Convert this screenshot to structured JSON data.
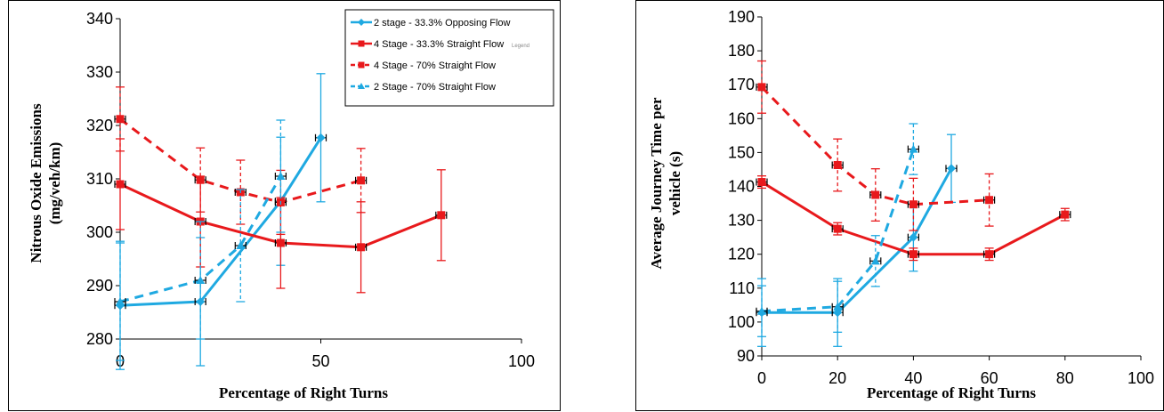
{
  "chart_data": [
    {
      "type": "line",
      "title": "",
      "xlabel": "Percentage of Right Turns",
      "ylabel": "Nitrous Oxide Emissions (mg/veh/km)",
      "ylabel_lines": [
        "Nitrous Oxide Emissions",
        "(mg/veh/km)"
      ],
      "xlim": [
        0,
        100
      ],
      "ylim": [
        280,
        340
      ],
      "xticks": [
        0,
        50,
        100
      ],
      "yticks": [
        280,
        290,
        300,
        310,
        320,
        330,
        340
      ],
      "grid": false,
      "legend_position": "top-right",
      "legend_tag": "Legend",
      "series": [
        {
          "name": "2 stage - 33.3% Opposing Flow",
          "color": "#1FA9E1",
          "dash": false,
          "marker": "diamond",
          "x": [
            0,
            20,
            40,
            50
          ],
          "y": [
            286.3,
            287.0,
            305.8,
            317.7
          ],
          "err": [
            12,
            12,
            12,
            12
          ]
        },
        {
          "name": "4 Stage - 33.3% Straight Flow",
          "color": "#E8191C",
          "dash": false,
          "marker": "square",
          "x": [
            0,
            20,
            40,
            60,
            80
          ],
          "y": [
            309.0,
            302.0,
            298.0,
            297.2,
            303.2
          ],
          "err": [
            8.5,
            8.5,
            8.5,
            8.5,
            8.5
          ]
        },
        {
          "name": "4 Stage - 70% Straight Flow",
          "color": "#E8191C",
          "dash": true,
          "marker": "square",
          "x": [
            0,
            20,
            30,
            40,
            60
          ],
          "y": [
            321.2,
            309.8,
            307.5,
            305.6,
            309.7
          ],
          "err": [
            6,
            6,
            6,
            6,
            6
          ]
        },
        {
          "name": "2 Stage - 70% Straight Flow",
          "color": "#1FA9E1",
          "dash": true,
          "marker": "triangle",
          "x": [
            0,
            20,
            30,
            40
          ],
          "y": [
            287.0,
            291.0,
            297.5,
            310.5
          ],
          "err": [
            11,
            11,
            10.5,
            10.5
          ]
        }
      ]
    },
    {
      "type": "line",
      "title": "",
      "xlabel": "Percentage of Right Turns",
      "ylabel": "Average Journey Time per vehicle (s)",
      "ylabel_lines": [
        "Average Journey Time per",
        "vehicle (s)"
      ],
      "xlim": [
        0,
        100
      ],
      "ylim": [
        90,
        190
      ],
      "xticks": [
        0,
        20,
        40,
        60,
        80,
        100
      ],
      "yticks": [
        90,
        100,
        110,
        120,
        130,
        140,
        150,
        160,
        170,
        180,
        190
      ],
      "grid": false,
      "legend_position": "none",
      "series": [
        {
          "color": "#1FA9E1",
          "dash": false,
          "marker": "diamond",
          "x": [
            0,
            20,
            40,
            50
          ],
          "y": [
            102.8,
            102.8,
            125.0,
            145.3
          ],
          "err": [
            10,
            10,
            10,
            10
          ]
        },
        {
          "color": "#E8191C",
          "dash": false,
          "marker": "square",
          "x": [
            0,
            20,
            40,
            60,
            80
          ],
          "y": [
            141.3,
            127.5,
            120.0,
            120.0,
            131.7
          ],
          "err": [
            1.8,
            1.8,
            1.8,
            1.8,
            1.8
          ]
        },
        {
          "color": "#E8191C",
          "dash": true,
          "marker": "square",
          "x": [
            0,
            20,
            30,
            40,
            60
          ],
          "y": [
            169.3,
            146.3,
            137.5,
            134.7,
            136.0
          ],
          "err": [
            7.7,
            7.7,
            7.7,
            7.7,
            7.7
          ]
        },
        {
          "color": "#1FA9E1",
          "dash": true,
          "marker": "triangle",
          "x": [
            0,
            20,
            30,
            40
          ],
          "y": [
            103.2,
            104.5,
            118.0,
            151.0
          ],
          "err": [
            7.5,
            7.5,
            7.5,
            7.5
          ]
        }
      ]
    }
  ]
}
